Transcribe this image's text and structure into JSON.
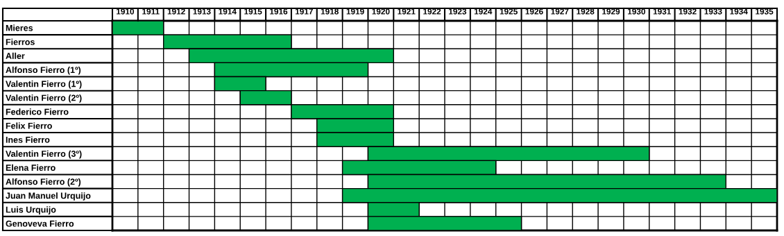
{
  "chart_data": {
    "type": "bar",
    "orientation": "horizontal",
    "grid": true,
    "categories": [
      "Mieres",
      "Fierros",
      "Aller",
      "Alfonso Fierro (1º)",
      "Valentin Fierro (1º)",
      "Valentin Fierro (2º)",
      "Federico Fierro",
      "Felix Fierro",
      "Ines Fierro",
      "Valentin Fierro (3º)",
      "Elena Fierro",
      "Alfonso Fierro (2º)",
      "Juan Manuel Urquijo",
      "Luis Urquijo",
      "Genoveva Fierro"
    ],
    "base": [
      1910,
      1912,
      1913,
      1914,
      1914,
      1915,
      1917,
      1918,
      1918,
      1920,
      1919,
      1920,
      1919,
      1920,
      1920
    ],
    "values": [
      2,
      5,
      8,
      6,
      2,
      2,
      4,
      3,
      3,
      11,
      6,
      14,
      17,
      2,
      6
    ],
    "color": "#00b050",
    "xlim": [
      1910,
      1936
    ],
    "xticks": [
      {
        "value": 1910.5,
        "label": "1910"
      },
      {
        "value": 1911.5,
        "label": "1911"
      },
      {
        "value": 1912.5,
        "label": "1912"
      },
      {
        "value": 1913.5,
        "label": "1913"
      },
      {
        "value": 1914.5,
        "label": "1914"
      },
      {
        "value": 1915.5,
        "label": "1915"
      },
      {
        "value": 1916.5,
        "label": "1916"
      },
      {
        "value": 1917.5,
        "label": "1917"
      },
      {
        "value": 1918.5,
        "label": "1918"
      },
      {
        "value": 1919.5,
        "label": "1919"
      },
      {
        "value": 1920.5,
        "label": "1920"
      },
      {
        "value": 1921.5,
        "label": "1921"
      },
      {
        "value": 1922.5,
        "label": "1922"
      },
      {
        "value": 1923.5,
        "label": "1923"
      },
      {
        "value": 1924.5,
        "label": "1924"
      },
      {
        "value": 1925.5,
        "label": "1925"
      },
      {
        "value": 1926.5,
        "label": "1926"
      },
      {
        "value": 1927.5,
        "label": "1927"
      },
      {
        "value": 1928.5,
        "label": "1928"
      },
      {
        "value": 1929.5,
        "label": "1929"
      },
      {
        "value": 1930.5,
        "label": "1930"
      },
      {
        "value": 1931.5,
        "label": "1931"
      },
      {
        "value": 1932.5,
        "label": "1932"
      },
      {
        "value": 1933.5,
        "label": "1933"
      },
      {
        "value": 1934.5,
        "label": "1934"
      },
      {
        "value": 1935.5,
        "label": "1935"
      }
    ]
  }
}
